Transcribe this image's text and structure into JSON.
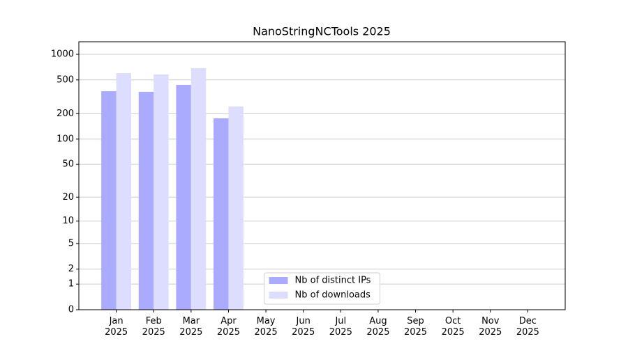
{
  "chart_data": {
    "type": "bar",
    "title": "NanoStringNCTools 2025",
    "categories": [
      "Jan 2025",
      "Feb 2025",
      "Mar 2025",
      "Apr 2025",
      "May 2025",
      "Jun 2025",
      "Jul 2025",
      "Aug 2025",
      "Sep 2025",
      "Oct 2025",
      "Nov 2025",
      "Dec 2025"
    ],
    "series": [
      {
        "name": "Nb of distinct IPs",
        "color": "#aaaaff",
        "values": [
          368,
          362,
          437,
          176,
          0,
          0,
          0,
          0,
          0,
          0,
          0,
          0
        ]
      },
      {
        "name": "Nb of downloads",
        "color": "#ddddff",
        "values": [
          602,
          580,
          687,
          243,
          0,
          0,
          0,
          0,
          0,
          0,
          0,
          0
        ]
      }
    ],
    "yscale": "log1p",
    "ylim": [
      0,
      1405
    ],
    "yticks": [
      0,
      1,
      2,
      5,
      10,
      20,
      50,
      100,
      200,
      500,
      1000
    ],
    "grid": true,
    "legend": "lower center"
  }
}
